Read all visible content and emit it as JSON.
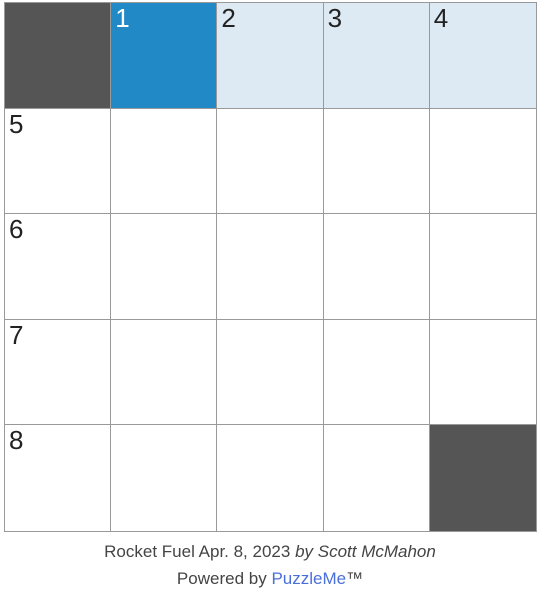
{
  "grid": {
    "rows": [
      [
        {
          "type": "block"
        },
        {
          "type": "open",
          "number": "1",
          "state": "selected"
        },
        {
          "type": "open",
          "number": "2",
          "state": "highlight"
        },
        {
          "type": "open",
          "number": "3",
          "state": "highlight"
        },
        {
          "type": "open",
          "number": "4",
          "state": "highlight"
        }
      ],
      [
        {
          "type": "open",
          "number": "5"
        },
        {
          "type": "open"
        },
        {
          "type": "open"
        },
        {
          "type": "open"
        },
        {
          "type": "open"
        }
      ],
      [
        {
          "type": "open",
          "number": "6"
        },
        {
          "type": "open"
        },
        {
          "type": "open"
        },
        {
          "type": "open"
        },
        {
          "type": "open"
        }
      ],
      [
        {
          "type": "open",
          "number": "7"
        },
        {
          "type": "open"
        },
        {
          "type": "open"
        },
        {
          "type": "open"
        },
        {
          "type": "open"
        }
      ],
      [
        {
          "type": "open",
          "number": "8"
        },
        {
          "type": "open"
        },
        {
          "type": "open"
        },
        {
          "type": "open"
        },
        {
          "type": "block"
        }
      ]
    ]
  },
  "footer": {
    "title": "Rocket Fuel Apr. 8, 2023",
    "byline": "by Scott McMahon",
    "powered": "Powered by",
    "brand": "PuzzleMe",
    "trademark": "™"
  }
}
